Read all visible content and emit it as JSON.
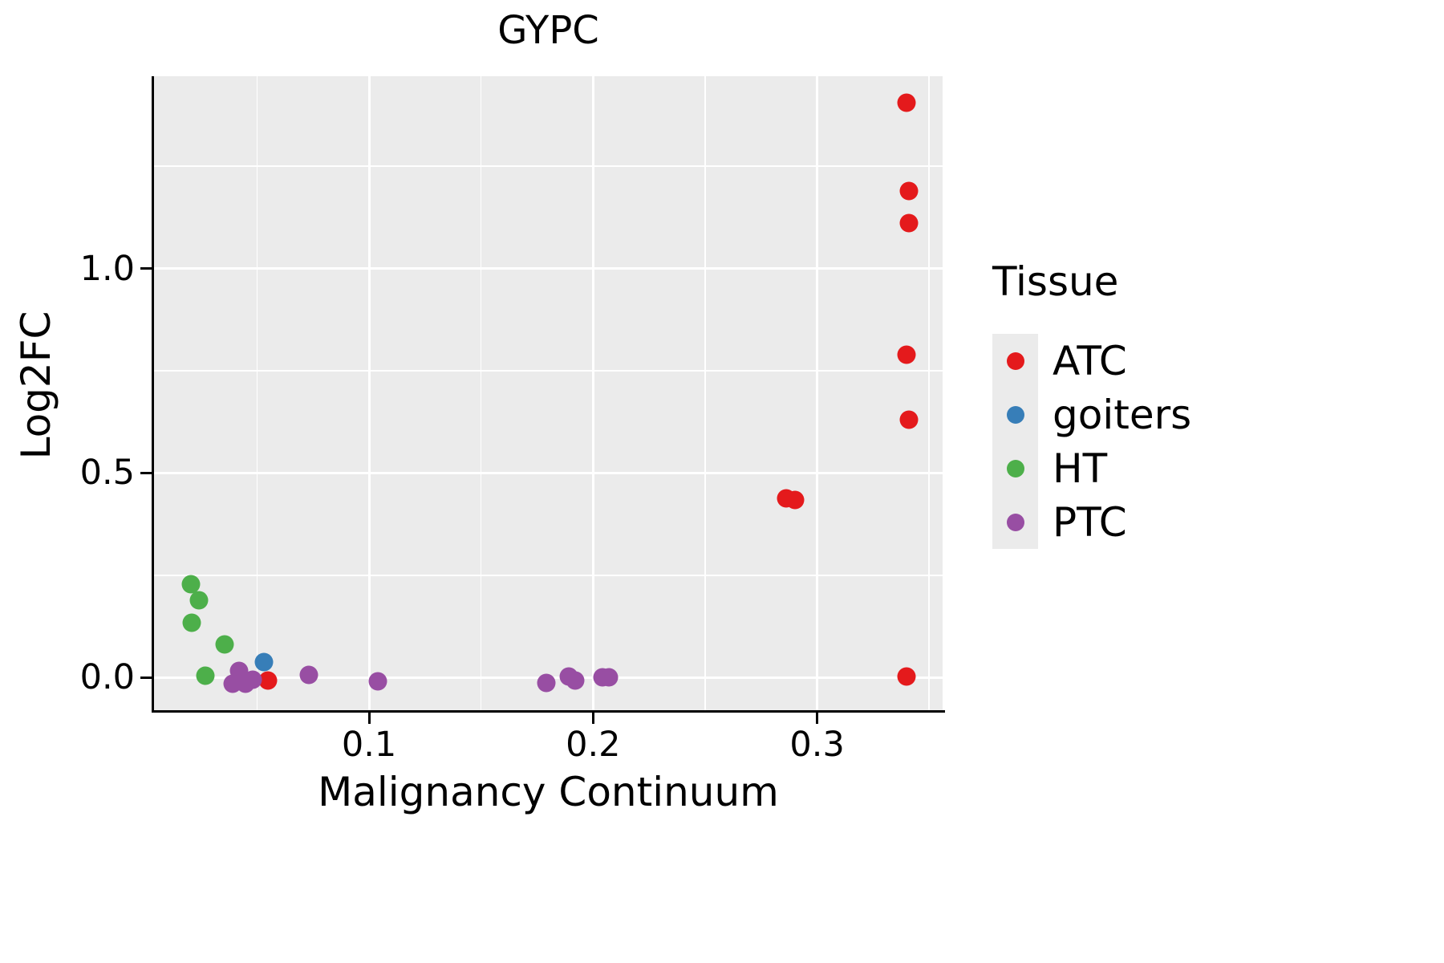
{
  "title": "GYPC",
  "legend": {
    "title": "Tissue",
    "entries": [
      {
        "label": "ATC",
        "color": "#E41A1C"
      },
      {
        "label": "goiters",
        "color": "#377EB8"
      },
      {
        "label": "HT",
        "color": "#4DAF4A"
      },
      {
        "label": "PTC",
        "color": "#984EA3"
      }
    ]
  },
  "chart_data": {
    "type": "scatter",
    "title": "GYPC",
    "xlabel": "Malignancy Continuum",
    "ylabel": "Log2FC",
    "legend_title": "Tissue",
    "xlim": [
      0.004,
      0.356
    ],
    "ylim": [
      -0.08,
      1.47
    ],
    "x_ticks": [
      {
        "value": 0.1,
        "label": "0.1"
      },
      {
        "value": 0.2,
        "label": "0.2"
      },
      {
        "value": 0.3,
        "label": "0.3"
      }
    ],
    "x_minor_ticks": [
      0.05,
      0.15,
      0.25,
      0.35
    ],
    "y_ticks": [
      {
        "value": 0.0,
        "label": "0.0"
      },
      {
        "value": 0.5,
        "label": "0.5"
      },
      {
        "value": 1.0,
        "label": "1.0"
      }
    ],
    "y_minor_ticks": [
      0.25,
      0.75,
      1.25
    ],
    "panel_background": "#EBEBEB",
    "grid_color": "#FFFFFF",
    "series": [
      {
        "name": "ATC",
        "color": "#E41A1C",
        "points": [
          [
            0.34,
            1.405
          ],
          [
            0.341,
            1.19
          ],
          [
            0.341,
            1.11
          ],
          [
            0.34,
            0.79
          ],
          [
            0.341,
            0.63
          ],
          [
            0.286,
            0.438
          ],
          [
            0.29,
            0.434
          ],
          [
            0.34,
            0.003
          ],
          [
            0.055,
            -0.008
          ]
        ]
      },
      {
        "name": "goiters",
        "color": "#377EB8",
        "points": [
          [
            0.053,
            0.038
          ]
        ]
      },
      {
        "name": "HT",
        "color": "#4DAF4A",
        "points": [
          [
            0.0205,
            0.228
          ],
          [
            0.024,
            0.189
          ],
          [
            0.021,
            0.134
          ],
          [
            0.0355,
            0.081
          ],
          [
            0.027,
            0.004
          ]
        ]
      },
      {
        "name": "PTC",
        "color": "#984EA3",
        "points": [
          [
            0.042,
            0.016
          ],
          [
            0.039,
            -0.015
          ],
          [
            0.045,
            -0.015
          ],
          [
            0.048,
            -0.005
          ],
          [
            0.073,
            0.006
          ],
          [
            0.104,
            -0.009
          ],
          [
            0.179,
            -0.014
          ],
          [
            0.189,
            0.002
          ],
          [
            0.192,
            -0.008
          ],
          [
            0.204,
            0.001
          ],
          [
            0.207,
            0.001
          ]
        ]
      }
    ]
  }
}
